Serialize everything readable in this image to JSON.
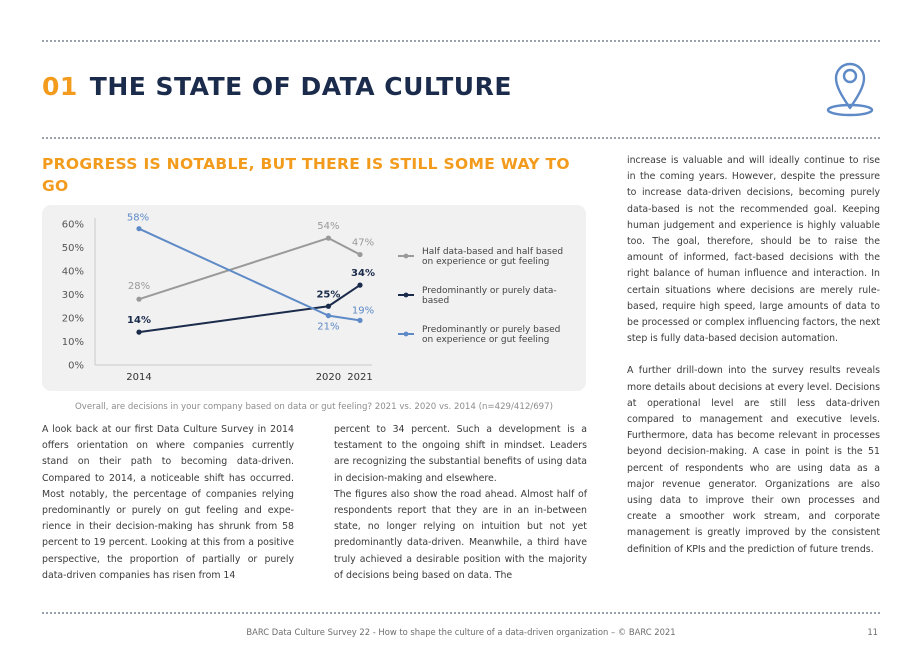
{
  "header": {
    "number": "01",
    "title": "THE STATE OF DATA CULTURE",
    "icon": "location-pin-icon"
  },
  "subtitle": "PROGRESS IS NOTABLE, BUT THERE IS STILL SOME WAY TO GO",
  "chart_data": {
    "type": "line",
    "x": [
      2014,
      2020,
      2021
    ],
    "x_tick_labels": [
      "2014",
      "2020",
      "2021"
    ],
    "y_tick_labels": [
      "0%",
      "10%",
      "20%",
      "30%",
      "40%",
      "50%",
      "60%"
    ],
    "ylim": [
      0,
      60
    ],
    "grid": false,
    "legend_position": "right",
    "series": [
      {
        "name": "Half data-based and half based on experience or gut feeling",
        "name_lines": [
          "Half data-based and half based",
          "on experience or gut feeling"
        ],
        "values": [
          28,
          54,
          47
        ],
        "labels": [
          "28%",
          "54%",
          "47%"
        ],
        "color": "#9a9a9a"
      },
      {
        "name": "Predominantly or purely data-based",
        "name_lines": [
          "Predominantly or purely data-",
          "based"
        ],
        "values": [
          14,
          25,
          34
        ],
        "labels": [
          "14%",
          "25%",
          "34%"
        ],
        "color": "#1b2b4b"
      },
      {
        "name": "Predominantly or purely based on experience or gut feeling",
        "name_lines": [
          "Predominantly or purely based",
          "on experience or gut feeling"
        ],
        "values": [
          58,
          21,
          19
        ],
        "labels": [
          "58%",
          "21%",
          "19%"
        ],
        "color": "#5e8ac7"
      }
    ],
    "caption": "Overall, are decisions in your company based on data or gut feeling? 2021 vs. 2020 vs. 2014 (n=429/412/697)"
  },
  "body": {
    "col1": "A look back at our first Data Culture Survey in 2014 offers orientation on where companies currently stand on their path to becoming data-driven. Compared to 2014, a noticeable shift has occurred. Most notably, the percentage of companies relying predominantly or purely on gut feeling and expe­rience in their decision-making has shrunk from 58 percent to 19 percent. Looking at this from a positive perspective, the proportion of partially or purely data-driven companies has risen from 14",
    "col2_p1": "percent to 34 percent. Such a development is a testament to the ongoing shift in mindset. Leaders are recognizing the substantial benefits of using data in decision-making and elsewhere.",
    "col2_p2": "The figures also show the road ahead. Almost half of respondents report that they are in an in-be­tween state, no longer relying on intuition but not yet predominantly data-driven. Meanwhile, a third have truly achieved a desirable position with the majority of decisions being based on data. The",
    "col3_p1": "increase is valuable and will ideally continue to rise in the coming years. However, despite the pres­sure to increase data-driven decisions, becoming purely data-based is not the recommended goal. Keeping human judgement and experience is highly valuable too. The goal, therefore, should be to raise the amount of informed, fact-based decisions with the right balance of human influ­ence and interaction. In certain situations where decisions are merely rule-based, require high speed, large amounts of data to be processed or complex influencing factors, the next step is fully data-based decision automation.",
    "col3_p2": "A further drill-down into the survey results reveals more details about decisions at every level. Decisions at operational level are still less data-driven compared to management and executive levels. Furthermore, data has become relevant in processes beyond decision-making. A case in point is the 51 percent of respondents who are using data as a major revenue generator. Organi­zations are also using data to improve their own processes and create a smoother work stream, and corporate management is greatly improved by the consistent definition of KPIs and the predic­tion of future trends."
  },
  "footer": {
    "text": "BARC Data Culture Survey 22 - How to shape the culture of a data-driven organization – © BARC 2021",
    "page_number": "11"
  }
}
